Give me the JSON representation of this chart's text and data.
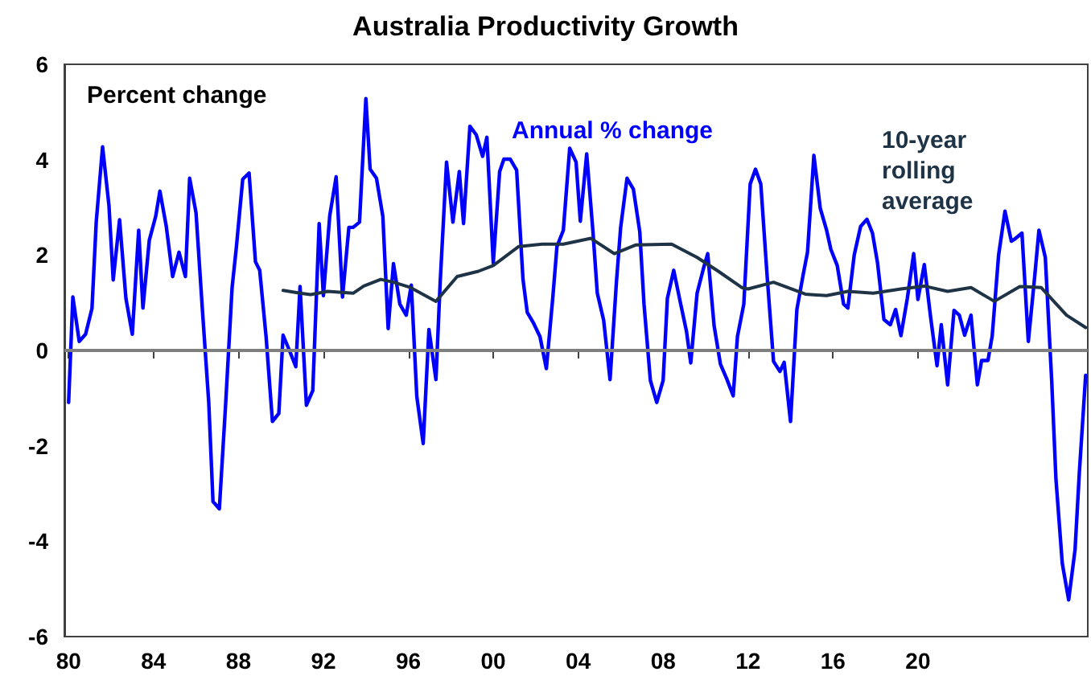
{
  "chart_data": {
    "type": "line",
    "title": "Australia Productivity Growth",
    "ylabel": "Percent change",
    "legend": false,
    "grid": false,
    "marker": "none",
    "line_style": "solid",
    "xlim": [
      1979.8,
      2028
    ],
    "xticks": [
      {
        "value": 1980,
        "label": "80"
      },
      {
        "value": 1984,
        "label": "84"
      },
      {
        "value": 1988,
        "label": "88"
      },
      {
        "value": 1992,
        "label": "92"
      },
      {
        "value": 1996,
        "label": "96"
      },
      {
        "value": 2000,
        "label": "00"
      },
      {
        "value": 2004,
        "label": "04"
      },
      {
        "value": 2008,
        "label": "08"
      },
      {
        "value": 2012,
        "label": "12"
      },
      {
        "value": 2016,
        "label": "16"
      },
      {
        "value": 2020,
        "label": "20"
      }
    ],
    "ylim": [
      -6,
      6
    ],
    "yticks": [
      -6,
      -4,
      -2,
      0,
      2,
      4,
      6
    ],
    "ref_lines": [
      {
        "axis": "y",
        "value": 0,
        "label": null,
        "color": "#7f7f7f"
      }
    ],
    "series": [
      {
        "name": "Annual % change",
        "color": "#0000ff",
        "x": [
          1980.0,
          1980.2,
          1980.5,
          1980.8,
          1981.1,
          1981.3,
          1981.6,
          1981.9,
          1982.1,
          1982.4,
          1982.7,
          1983.0,
          1983.3,
          1983.5,
          1983.8,
          1984.1,
          1984.3,
          1984.6,
          1984.9,
          1985.2,
          1985.5,
          1985.7,
          1986.0,
          1986.3,
          1986.6,
          1986.8,
          1987.1,
          1987.4,
          1987.7,
          1987.9,
          1988.2,
          1988.5,
          1988.8,
          1989.0,
          1989.3,
          1989.6,
          1989.9,
          1990.1,
          1990.4,
          1990.7,
          1990.9,
          1991.2,
          1991.5,
          1991.8,
          1992.0,
          1992.3,
          1992.6,
          1992.9,
          1993.2,
          1993.4,
          1993.7,
          1994.0,
          1994.2,
          1994.5,
          1994.8,
          1995.05,
          1995.3,
          1995.6,
          1995.9,
          1996.14,
          1996.4,
          1996.7,
          1996.97,
          1997.3,
          1997.5,
          1997.8,
          1998.1,
          1998.4,
          1998.6,
          1998.9,
          1999.2,
          1999.5,
          1999.7,
          2000.0,
          2000.3,
          2000.5,
          2000.8,
          2001.1,
          2001.4,
          2001.6,
          2001.9,
          2002.2,
          2002.5,
          2002.8,
          2003.0,
          2003.3,
          2003.6,
          2003.9,
          2004.1,
          2004.4,
          2004.7,
          2004.9,
          2005.2,
          2005.5,
          2005.8,
          2006.0,
          2006.3,
          2006.6,
          2006.9,
          2007.1,
          2007.4,
          2007.7,
          2008.0,
          2008.2,
          2008.5,
          2008.8,
          2009.1,
          2009.3,
          2009.6,
          2009.9,
          2010.1,
          2010.4,
          2010.7,
          2011.0,
          2011.3,
          2011.5,
          2011.8,
          2012.1,
          2012.35,
          2012.6,
          2012.9,
          2013.2,
          2013.5,
          2013.7,
          2014.0,
          2014.3,
          2014.6,
          2014.8,
          2015.1,
          2015.4,
          2015.7,
          2015.9,
          2016.2,
          2016.5,
          2016.7,
          2017.0,
          2017.3,
          2017.6,
          2017.86,
          2018.1,
          2018.4,
          2018.7,
          2018.95,
          2019.2,
          2019.5,
          2019.8,
          2020.0,
          2020.3,
          2020.6,
          2020.9,
          2021.1,
          2021.4,
          2021.7,
          2021.95,
          2022.2,
          2022.5,
          2022.8,
          2023.0,
          2023.3,
          2023.5,
          2023.8,
          2024.1,
          2024.4,
          2024.6,
          2024.9,
          2025.2,
          2025.5,
          2025.7,
          2026.0,
          2026.3,
          2026.5,
          2026.8,
          2027.1,
          2027.4,
          2027.6,
          2027.9
        ],
        "values": [
          -1.09,
          1.12,
          0.19,
          0.34,
          0.88,
          2.69,
          4.27,
          3.04,
          1.48,
          2.74,
          1.09,
          0.34,
          2.52,
          0.89,
          2.31,
          2.81,
          3.34,
          2.6,
          1.55,
          2.06,
          1.55,
          3.61,
          2.89,
          0.86,
          -1.09,
          -3.17,
          -3.32,
          -1.09,
          1.32,
          2.16,
          3.59,
          3.72,
          1.86,
          1.68,
          0.29,
          -1.49,
          -1.32,
          0.32,
          0,
          -0.34,
          1.34,
          -1.15,
          -0.84,
          2.66,
          1.15,
          2.83,
          3.64,
          1.12,
          2.58,
          2.58,
          2.69,
          5.28,
          3.8,
          3.61,
          2.81,
          0.46,
          1.82,
          0.97,
          0.74,
          1.37,
          -0.97,
          -1.95,
          0.44,
          -0.61,
          1.43,
          3.95,
          2.69,
          3.75,
          2.66,
          4.7,
          4.52,
          4.07,
          4.47,
          1.83,
          3.75,
          4.01,
          4.01,
          3.78,
          1.49,
          0.8,
          0.57,
          0.29,
          -0.38,
          1.09,
          2.18,
          2.52,
          4.24,
          3.95,
          2.71,
          4.12,
          2.46,
          1.2,
          0.63,
          -0.61,
          1.43,
          2.58,
          3.61,
          3.38,
          2.49,
          0.97,
          -0.63,
          -1.09,
          -0.63,
          1.09,
          1.68,
          1.03,
          0.4,
          -0.26,
          1.2,
          1.72,
          2.03,
          0.52,
          -0.29,
          -0.6,
          -0.95,
          0.29,
          0.97,
          3.49,
          3.8,
          3.49,
          1.55,
          -0.23,
          -0.44,
          -0.25,
          -1.49,
          0.86,
          1.6,
          2.06,
          4.09,
          2.98,
          2.52,
          2.12,
          1.78,
          0.97,
          0.89,
          2.0,
          2.6,
          2.75,
          2.46,
          1.83,
          0.65,
          0.54,
          0.86,
          0.31,
          1.09,
          2.03,
          1.07,
          1.8,
          0.69,
          -0.32,
          0.54,
          -0.72,
          0.84,
          0.74,
          0.32,
          0.74,
          -0.72,
          -0.21,
          -0.21,
          0.31,
          2.0,
          2.92,
          2.29,
          2.35,
          2.46,
          0.19,
          1.55,
          2.52,
          1.95,
          -0.63,
          -2.69,
          -4.47,
          -5.23,
          -4.18,
          -2.58,
          -0.52
        ]
      },
      {
        "name": "10-year rolling average",
        "color": "#1f3346",
        "x": [
          1990.1,
          1990.9,
          1991.4,
          1992.2,
          1993.4,
          1993.9,
          1994.7,
          1995.3,
          1996.1,
          1997.3,
          1998.3,
          1999.3,
          2000.0,
          2001.2,
          2002.3,
          2003.3,
          2004.6,
          2005.7,
          2006.7,
          2008.4,
          2009.6,
          2010.6,
          2011.7,
          2012.0,
          2013.2,
          2014.7,
          2015.7,
          2016.7,
          2017.9,
          2019.2,
          2020.3,
          2021.4,
          2022.5,
          2023.6,
          2024.8,
          2025.8,
          2027.0,
          2027.9
        ],
        "values": [
          1.26,
          1.2,
          1.17,
          1.24,
          1.2,
          1.35,
          1.49,
          1.43,
          1.32,
          1.03,
          1.55,
          1.66,
          1.78,
          2.18,
          2.23,
          2.23,
          2.35,
          2.03,
          2.21,
          2.23,
          1.95,
          1.66,
          1.32,
          1.29,
          1.43,
          1.18,
          1.15,
          1.24,
          1.2,
          1.29,
          1.35,
          1.24,
          1.32,
          1.03,
          1.34,
          1.32,
          0.74,
          0.48
        ]
      }
    ]
  }
}
